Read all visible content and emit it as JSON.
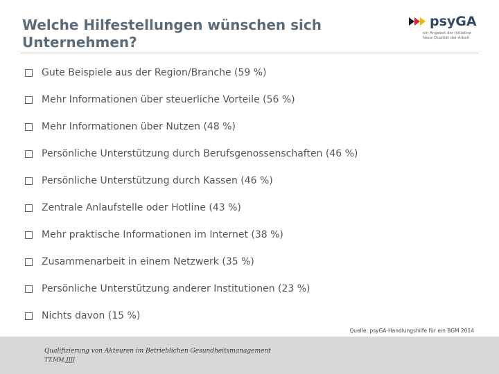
{
  "slide": {
    "title_line1": "Welche Hilfestellungen wünschen sich",
    "title_line2": "Unternehmen?"
  },
  "logo": {
    "word": "psyGA",
    "tagline_line1": "ein Angebot der Initiative",
    "tagline_line2": "Neue Qualität der Arbeit",
    "colors": {
      "arrow_black": "#1a1a1a",
      "arrow_red": "#d8232a",
      "arrow_gold": "#f2b705",
      "word": "#2f4a66"
    }
  },
  "items": [
    {
      "label": "Gute Beispiele aus der Region/Branche (59 %)"
    },
    {
      "label": "Mehr Informationen über steuerliche Vorteile (56 %)"
    },
    {
      "label": "Mehr Informationen über Nutzen (48 %)"
    },
    {
      "label": "Persönliche Unterstützung durch Berufsgenossenschaften (46 %)"
    },
    {
      "label": "Persönliche Unterstützung durch Kassen (46 %)"
    },
    {
      "label": "Zentrale Anlaufstelle oder Hotline (43 %)"
    },
    {
      "label": "Mehr praktische Informationen im Internet (38 %)"
    },
    {
      "label": "Zusammenarbeit in einem Netzwerk (35 %)"
    },
    {
      "label": "Persönliche Unterstützung anderer Institutionen (23 %)"
    },
    {
      "label": "Nichts davon (15 %)"
    }
  ],
  "source": "Quelle: psyGA-Handlungshilfe für ein BGM 2014",
  "footer": {
    "title": "Qualifizierung von Akteuren im Betrieblichen Gesundheitsmanagement",
    "date": "TT.MM.JJJJ"
  },
  "colors": {
    "title": "#5b6b78",
    "text": "#555555",
    "footer_bg": "#d8d8d8"
  }
}
